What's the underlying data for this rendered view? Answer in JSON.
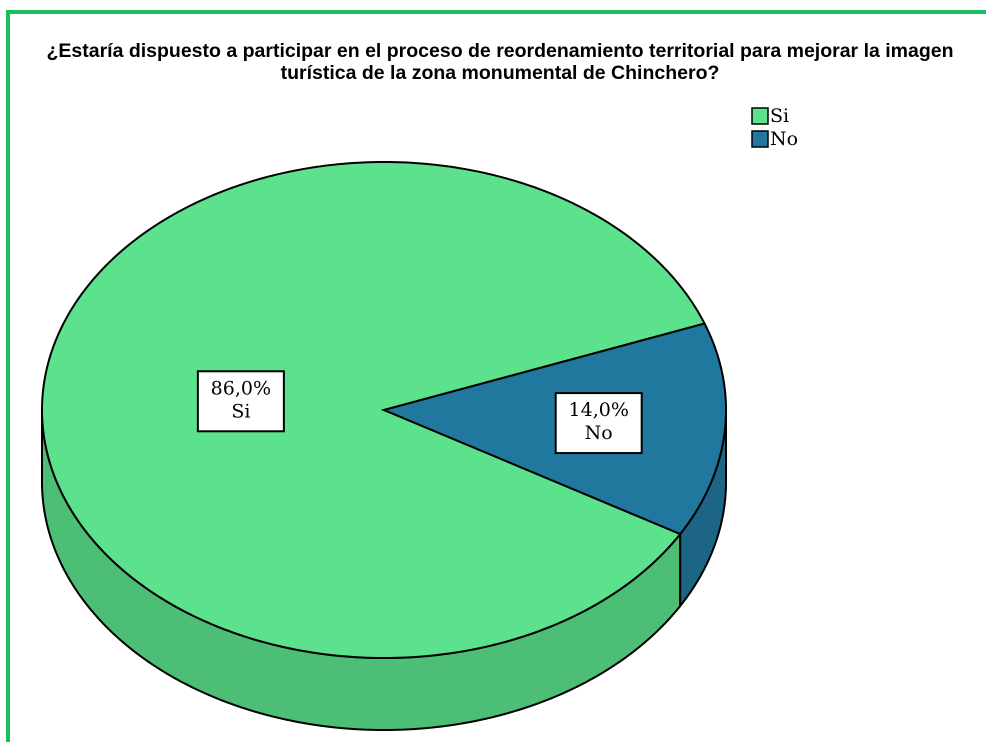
{
  "chart_data": {
    "type": "pie",
    "title": "¿Estaría dispuesto a participar en el proceso de reordenamiento territorial para mejorar la imagen turística de la zona monumental de Chinchero?",
    "categories": [
      "Si",
      "No"
    ],
    "values": [
      86.0,
      14.0
    ],
    "value_labels": [
      "86,0%",
      "14,0%"
    ],
    "colors": [
      "#5ce28c",
      "#21789e"
    ],
    "legend": "top-right"
  }
}
